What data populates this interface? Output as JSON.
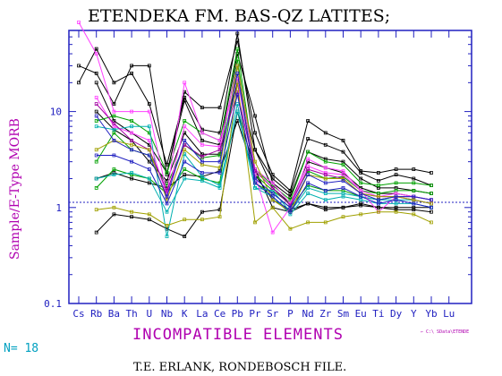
{
  "chart_data": {
    "type": "line",
    "title": "ETENDEKA FM. BAS-QZ LATITES;",
    "xlabel": "INCOMPATIBLE ELEMENTS",
    "ylabel": "Sample/E-Type MORB",
    "yscale": "log",
    "ylim": [
      0.1,
      70
    ],
    "y_ticks": [
      "0.1",
      "1",
      "10"
    ],
    "reference_line": 1,
    "categories": [
      "Cs",
      "Rb",
      "Ba",
      "Th",
      "U",
      "Nb",
      "K",
      "La",
      "Ce",
      "Pb",
      "Pr",
      "Sr",
      "P",
      "Nd",
      "Zr",
      "Sm",
      "Eu",
      "Ti",
      "Dy",
      "Y",
      "Yb",
      "Lu"
    ],
    "series": [
      {
        "color": "#000000",
        "values": [
          30,
          25,
          12,
          30,
          30,
          2.2,
          16,
          11,
          11,
          55,
          6,
          2.2,
          1.5,
          8,
          6,
          5,
          2.4,
          2.3,
          2.5,
          2.5,
          2.3,
          null
        ]
      },
      {
        "color": "#000000",
        "values": [
          20,
          45,
          20,
          25,
          12,
          2.8,
          14,
          6.5,
          6,
          65,
          4,
          2.0,
          1.4,
          5.2,
          4.5,
          3.8,
          2.3,
          1.9,
          2.2,
          2.0,
          1.7,
          null
        ]
      },
      {
        "color": "#000000",
        "values": [
          null,
          20,
          8,
          6,
          4.5,
          2.3,
          13,
          5,
          4.5,
          40,
          9,
          1.8,
          1.3,
          3.8,
          3.2,
          3,
          2.0,
          1.6,
          1.6,
          1.5,
          1.4,
          null
        ]
      },
      {
        "color": "#000000",
        "values": [
          null,
          10,
          6.5,
          5,
          3,
          1.9,
          6,
          3.6,
          3.6,
          20,
          4,
          1.6,
          1.1,
          3.0,
          2.6,
          2.3,
          1.6,
          1.4,
          1.4,
          1.3,
          1.2,
          null
        ]
      },
      {
        "color": "#000000",
        "values": [
          null,
          2.0,
          2.3,
          2.0,
          1.8,
          1.6,
          2.2,
          2.1,
          2.4,
          8,
          2.2,
          1.2,
          0.95,
          1.1,
          0.95,
          1.0,
          1.1,
          1.0,
          1.0,
          1.0,
          1.0,
          null
        ]
      },
      {
        "color": "#000000",
        "values": [
          null,
          0.55,
          0.85,
          0.8,
          0.75,
          0.6,
          0.5,
          0.9,
          0.95,
          10,
          2.5,
          1.0,
          0.9,
          1.1,
          1.0,
          1.0,
          1.05,
          1.0,
          0.95,
          0.95,
          0.9,
          null
        ]
      },
      {
        "color": "#00a000",
        "values": [
          null,
          8,
          9,
          8,
          6,
          2.3,
          8,
          6,
          5,
          45,
          2.5,
          1.7,
          1.2,
          3.8,
          3.0,
          2.8,
          1.8,
          1.7,
          1.8,
          1.8,
          1.7,
          null
        ]
      },
      {
        "color": "#00a000",
        "values": [
          null,
          3,
          6,
          4,
          3.5,
          1.7,
          4.5,
          3.3,
          3.5,
          35,
          2.2,
          1.5,
          1.1,
          2.4,
          2.0,
          2.1,
          1.5,
          1.4,
          1.5,
          1.5,
          1.4,
          null
        ]
      },
      {
        "color": "#00a000",
        "values": [
          null,
          1.6,
          2.5,
          2.2,
          2.0,
          1.4,
          2.5,
          2.0,
          1.8,
          30,
          1.8,
          1.4,
          1.0,
          1.7,
          1.5,
          1.5,
          1.3,
          1.2,
          1.3,
          1.3,
          1.2,
          null
        ]
      },
      {
        "color": "#00b0b0",
        "values": [
          null,
          7,
          6.5,
          7,
          7,
          0.5,
          3.6,
          2.1,
          1.7,
          12,
          1.6,
          1.5,
          0.9,
          1.6,
          1.4,
          1.4,
          1.3,
          1.2,
          1.2,
          1.2,
          1.1,
          null
        ]
      },
      {
        "color": "#00b0b0",
        "values": [
          null,
          2.0,
          2.2,
          2.3,
          2.0,
          0.9,
          2.0,
          1.9,
          1.6,
          10,
          1.6,
          1.3,
          0.85,
          1.4,
          1.2,
          1.3,
          1.2,
          1.1,
          1.1,
          1.1,
          1.0,
          null
        ]
      },
      {
        "color": "#ff40ff",
        "values": [
          85,
          40,
          10,
          10,
          10,
          1.4,
          20,
          6,
          5,
          22,
          2.2,
          0.55,
          1.0,
          3.2,
          2.6,
          2.4,
          1.5,
          1.3,
          1.4,
          1.3,
          1.2,
          null
        ]
      },
      {
        "color": "#ff40ff",
        "values": [
          null,
          14,
          7,
          6,
          5,
          1.3,
          7,
          4.5,
          4.3,
          30,
          2.5,
          1.8,
          1.1,
          2.7,
          2.3,
          2.2,
          1.5,
          0.9,
          1.3,
          1.3,
          1.2,
          null
        ]
      },
      {
        "color": "#a000a0",
        "values": [
          null,
          12,
          7.5,
          5,
          4,
          1.5,
          4.5,
          3.4,
          4,
          16,
          2.4,
          1.6,
          1.05,
          2.5,
          2.2,
          2.0,
          1.4,
          1.3,
          1.3,
          1.2,
          1.1,
          null
        ]
      },
      {
        "color": "#a0a000",
        "values": [
          null,
          0.95,
          1.0,
          0.9,
          0.85,
          0.65,
          0.75,
          0.75,
          0.8,
          20,
          0.7,
          1.0,
          0.6,
          0.7,
          0.7,
          0.8,
          0.85,
          0.9,
          0.9,
          0.85,
          0.7,
          null
        ]
      },
      {
        "color": "#a0a000",
        "values": [
          null,
          4,
          5,
          4.5,
          4,
          1.2,
          4,
          2.8,
          2.6,
          30,
          3,
          1.2,
          0.9,
          2.2,
          2.0,
          2.0,
          1.4,
          1.3,
          1.3,
          1.2,
          1.1,
          null
        ]
      },
      {
        "color": "#2020c0",
        "values": [
          null,
          9,
          5,
          4,
          3.5,
          1.3,
          5,
          3.0,
          3.0,
          25,
          2.0,
          1.4,
          1.0,
          2.2,
          1.8,
          1.9,
          1.4,
          1.2,
          1.3,
          1.3,
          1.2,
          null
        ]
      },
      {
        "color": "#2020c0",
        "values": [
          null,
          3.5,
          3.5,
          3.0,
          2.5,
          1.1,
          3.0,
          2.3,
          2.3,
          15,
          1.8,
          1.3,
          0.9,
          1.8,
          1.5,
          1.6,
          1.3,
          1.1,
          1.2,
          1.1,
          1.0,
          null
        ]
      }
    ],
    "n_label": "N= 18",
    "file_label": "← C:\\ SData\\ETENDE",
    "footer": "T.E. ERLANK, RONDEBOSCH FILE."
  }
}
